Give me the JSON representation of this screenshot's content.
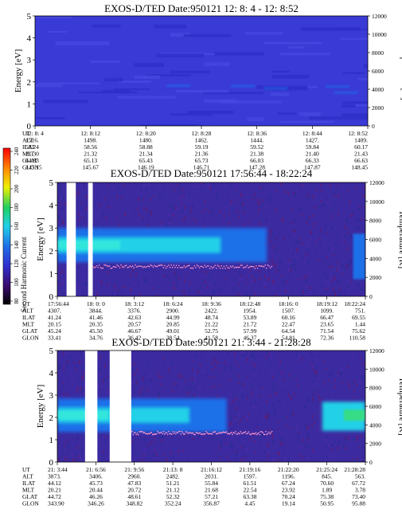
{
  "colorbar": {
    "title": "Second Harmonic Current",
    "ticks": [
      "80",
      "100",
      "120",
      "140",
      "160",
      "180",
      "200",
      "220",
      "240"
    ],
    "colors": [
      "#000000",
      "#3a0a6e",
      "#3030d0",
      "#1f6fe8",
      "#20d0e8",
      "#20d060",
      "#f0f000",
      "#ff8800",
      "#ff0000"
    ]
  },
  "orbit_labels": [
    "UT",
    "ALT",
    "ILAT",
    "MLT",
    "GLAT",
    "GLON"
  ],
  "chart_data": [
    {
      "type": "heatmap",
      "title": "EXOS-D/TED   Date:950121  12: 8: 4 - 12: 8:52",
      "ylabel": "Energy [eV]",
      "y2label": "Temperature [K]",
      "ylim": [
        0,
        5
      ],
      "y2lim": [
        0,
        12000
      ],
      "yticks": [
        "0",
        "1",
        "2",
        "3",
        "4",
        "5"
      ],
      "y2ticks": [
        "0",
        "2000",
        "4000",
        "6000",
        "8000",
        "10000",
        "12000"
      ],
      "columns": [
        {
          "UT": "12: 8: 4",
          "ALT": "1516.",
          "ILAT": "58.24",
          "MLT": "21.30",
          "GLAT": "64.83",
          "GLON": "145.15"
        },
        {
          "UT": "12: 8:12",
          "ALT": "1498.",
          "ILAT": "58.56",
          "MLT": "21.32",
          "GLAT": "65.13",
          "GLON": "145.67"
        },
        {
          "UT": "12: 8:20",
          "ALT": "1480.",
          "ILAT": "58.88",
          "MLT": "21.34",
          "GLAT": "65.43",
          "GLON": "146.19"
        },
        {
          "UT": "12: 8:28",
          "ALT": "1462.",
          "ILAT": "59.19",
          "MLT": "21.36",
          "GLAT": "65.73",
          "GLON": "146.71"
        },
        {
          "UT": "12: 8:36",
          "ALT": "1444.",
          "ILAT": "59.52",
          "MLT": "21.38",
          "GLAT": "66.03",
          "GLON": "147.28"
        },
        {
          "UT": "12: 8:44",
          "ALT": "1427.",
          "ILAT": "59.84",
          "MLT": "21.40",
          "GLAT": "66.33",
          "GLON": "147.87"
        },
        {
          "UT": "12: 8:52",
          "ALT": "1409.",
          "ILAT": "60.17",
          "MLT": "21.43",
          "GLAT": "66.63",
          "GLON": "148.45"
        }
      ],
      "band": {
        "energy_center_eV": 2.0,
        "level": "low",
        "data_gaps": []
      },
      "temperature_trace": "none"
    },
    {
      "type": "heatmap",
      "title": "EXOS-D/TED   Date:950121   17:56:44 - 18:22:24",
      "ylabel": "Energy [eV]",
      "y2label": "Temperature [K]",
      "ylim": [
        0,
        5
      ],
      "y2lim": [
        0,
        12000
      ],
      "yticks": [
        "0",
        "1",
        "2",
        "3",
        "4",
        "5"
      ],
      "y2ticks": [
        "0",
        "2000",
        "4000",
        "6000",
        "8000",
        "10000",
        "12000"
      ],
      "columns": [
        {
          "UT": "17:56:44",
          "ALT": "4307.",
          "ILAT": "41.24",
          "MLT": "20.15",
          "GLAT": "45.24",
          "GLON": "33.41"
        },
        {
          "UT": "18: 0: 0",
          "ALT": "3844.",
          "ILAT": "41.46",
          "MLT": "20.35",
          "GLAT": "45.50",
          "GLON": "34.76"
        },
        {
          "UT": "18: 3:12",
          "ALT": "3376.",
          "ILAT": "42.63",
          "MLT": "20.57",
          "GLAT": "46.67",
          "GLON": "36.42"
        },
        {
          "UT": "18: 6:24",
          "ALT": "2900.",
          "ILAT": "44.99",
          "MLT": "20.85",
          "GLAT": "49.01",
          "GLON": "38.54"
        },
        {
          "UT": "18: 9:36",
          "ALT": "2422.",
          "ILAT": "48.74",
          "MLT": "21.22",
          "GLAT": "52.75",
          "GLON": "41.58"
        },
        {
          "UT": "18:12:48",
          "ALT": "1954.",
          "ILAT": "53.89",
          "MLT": "21.72",
          "GLAT": "57.99",
          "GLON": "46.37"
        },
        {
          "UT": "18:16: 0",
          "ALT": "1507.",
          "ILAT": "60.16",
          "MLT": "22.47",
          "GLAT": "64.54",
          "GLON": "54.81"
        },
        {
          "UT": "18:19:12",
          "ALT": "1099.",
          "ILAT": "66.47",
          "MLT": "23.65",
          "GLAT": "71.54",
          "GLON": "72.36"
        },
        {
          "UT": "18:22:24",
          "ALT": "751.",
          "ILAT": "69.55",
          "MLT": "1.44",
          "GLAT": "75.62",
          "GLON": "110.58"
        }
      ],
      "band": {
        "energy_center_eV": 2.25,
        "level": "high",
        "data_gaps": [
          [
            0.03,
            0.06
          ],
          [
            0.1,
            0.115
          ]
        ]
      },
      "temperature_trace": "dotted"
    },
    {
      "type": "heatmap",
      "title": "EXOS-D/TED   Date:950121  21: 3:44 - 21:28:28",
      "ylabel": "Energy [eV]",
      "y2label": "Temperature [K]",
      "ylim": [
        0,
        5
      ],
      "y2lim": [
        0,
        12000
      ],
      "yticks": [
        "0",
        "1",
        "2",
        "3",
        "4",
        "5"
      ],
      "y2ticks": [
        "0",
        "2000",
        "4000",
        "6000",
        "8000",
        "10000",
        "12000"
      ],
      "columns": [
        {
          "UT": "21: 3:44",
          "ALT": "3873.",
          "ILAT": "44.12",
          "MLT": "20.21",
          "GLAT": "44.72",
          "GLON": "343.90"
        },
        {
          "UT": "21: 6:56",
          "ALT": "3406.",
          "ILAT": "45.73",
          "MLT": "20.44",
          "GLAT": "46.26",
          "GLON": "346.26"
        },
        {
          "UT": "21: 9:56",
          "ALT": "2960.",
          "ILAT": "47.83",
          "MLT": "20.72",
          "GLAT": "48.61",
          "GLON": "348.82"
        },
        {
          "UT": "21:13: 8",
          "ALT": "2482.",
          "ILAT": "51.21",
          "MLT": "21.12",
          "GLAT": "52.32",
          "GLON": "352.24"
        },
        {
          "UT": "21:16:12",
          "ALT": "2031.",
          "ILAT": "55.84",
          "MLT": "21.68",
          "GLAT": "57.21",
          "GLON": "356.87"
        },
        {
          "UT": "21:19:16",
          "ALT": "1597.",
          "ILAT": "61.51",
          "MLT": "22.54",
          "GLAT": "63.38",
          "GLON": "4.45"
        },
        {
          "UT": "21:22:20",
          "ALT": "1196.",
          "ILAT": "67.24",
          "MLT": "23.92",
          "GLAT": "70.24",
          "GLON": "19.14"
        },
        {
          "UT": "21:25:24",
          "ALT": "845.",
          "ILAT": "70.60",
          "MLT": "1.89",
          "GLAT": "75.38",
          "GLON": "50.95"
        },
        {
          "UT": "21:28:28",
          "ALT": "563.",
          "ILAT": "67.72",
          "MLT": "3.78",
          "GLAT": "73.40",
          "GLON": "95.88"
        }
      ],
      "band": {
        "energy_center_eV": 2.1,
        "level": "high",
        "data_gaps": [
          [
            0.09,
            0.13
          ],
          [
            0.17,
            0.24
          ]
        ]
      },
      "temperature_trace": "dotted"
    }
  ]
}
